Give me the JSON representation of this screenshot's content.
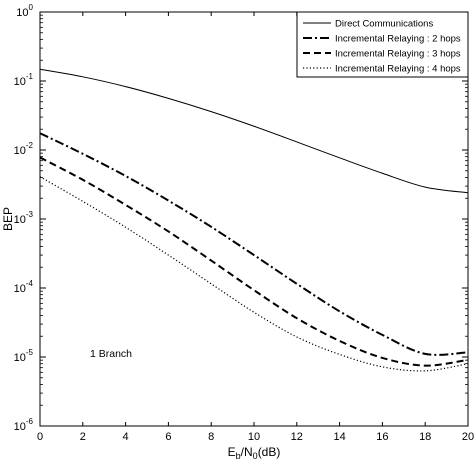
{
  "chart_data": {
    "type": "line",
    "title": "",
    "xlabel": "E_b/N_0(dB)",
    "xlabel_parts": {
      "E": "E",
      "b": "b",
      "slash": "/N",
      "zero": "0",
      "unit": "(dB)"
    },
    "ylabel": "BEP",
    "xlim": [
      0,
      20
    ],
    "ylim_log10": [
      -6,
      0
    ],
    "yscale": "log",
    "grid": false,
    "legend_position": "top-right",
    "x_ticks": [
      0,
      2,
      4,
      6,
      8,
      10,
      12,
      14,
      16,
      18,
      20
    ],
    "x_tick_labels": [
      "0",
      "2",
      "4",
      "6",
      "8",
      "10",
      "12",
      "14",
      "16",
      "18",
      "20"
    ],
    "y_ticks": [
      {
        "base": "10",
        "exp": "0",
        "log": 0
      },
      {
        "base": "10",
        "exp": "-1",
        "log": -1
      },
      {
        "base": "10",
        "exp": "-2",
        "log": -2
      },
      {
        "base": "10",
        "exp": "-3",
        "log": -3
      },
      {
        "base": "10",
        "exp": "-4",
        "log": -4
      },
      {
        "base": "10",
        "exp": "-5",
        "log": -5
      },
      {
        "base": "10",
        "exp": "-6",
        "log": -6
      }
    ],
    "annotation": "1 Branch",
    "x": [
      0,
      2,
      4,
      6,
      8,
      10,
      12,
      14,
      16,
      18,
      20
    ],
    "series": [
      {
        "name": "Direct Communications",
        "style": "solid",
        "width": 1,
        "values": [
          0.148,
          0.115,
          0.083,
          0.056,
          0.036,
          0.0221,
          0.0131,
          0.0077,
          0.0046,
          0.0029,
          0.0024
        ]
      },
      {
        "name": "Incremental Relaying : 2 hops",
        "style": "dashdot",
        "width": 2,
        "values": [
          0.0175,
          0.0088,
          0.0042,
          0.00185,
          0.00077,
          0.0003,
          0.000115,
          4.59e-05,
          2.09e-05,
          1.11e-05,
          1.17e-05
        ]
      },
      {
        "name": "Incremental Relaying : 3 hops",
        "style": "dash",
        "width": 2,
        "values": [
          0.0078,
          0.0037,
          0.0016,
          0.00066,
          0.00025,
          9.3e-05,
          3.65e-05,
          1.71e-05,
          9.7e-06,
          7.5e-06,
          9.1e-06
        ]
      },
      {
        "name": "Incremental Relaying : 4 hops",
        "style": "dot",
        "width": 1.2,
        "values": [
          0.0041,
          0.0018,
          0.00076,
          0.0003,
          0.000115,
          4.45e-05,
          1.95e-05,
          1.09e-05,
          7.2e-06,
          6.3e-06,
          8e-06
        ]
      }
    ]
  }
}
